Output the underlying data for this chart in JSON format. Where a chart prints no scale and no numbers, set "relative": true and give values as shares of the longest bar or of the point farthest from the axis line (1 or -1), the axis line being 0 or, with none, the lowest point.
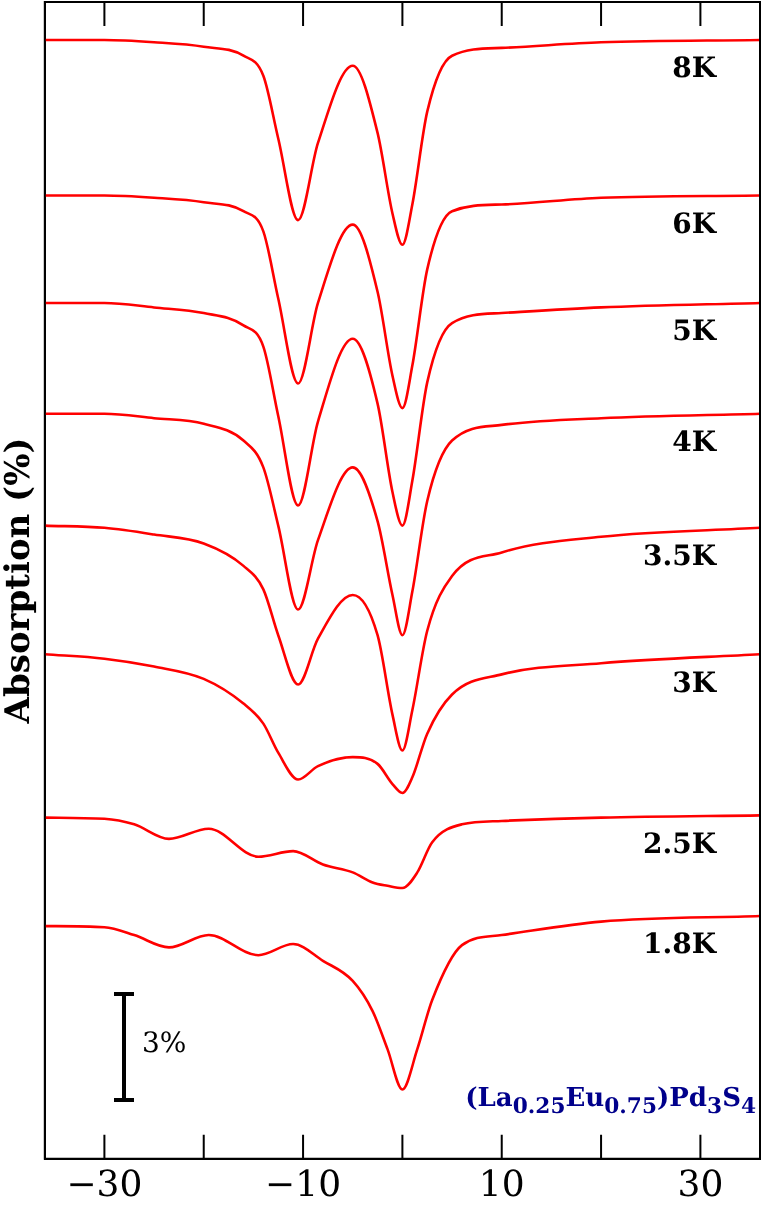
{
  "chart_data": {
    "type": "line",
    "relative": true,
    "ylabel": "Absorption (%)",
    "xlim": [
      -36,
      36
    ],
    "xticks": [
      -30,
      {
        "value": -20,
        "label": null
      },
      -10,
      {
        "value": 0,
        "label": null
      },
      10,
      {
        "value": 20,
        "label": null
      },
      30
    ],
    "tick_labels": "x",
    "grid": false,
    "legend": false,
    "marker": "none",
    "line_style": "solid",
    "annotations": [
      "3%",
      "(La$_{0.25}$Eu$_{0.75}$)Pd$_{3}$S$_{4}$"
    ],
    "series": [
      {
        "name": "8K",
        "color": "#ff0000",
        "x": [
          -36,
          -30,
          -25,
          -20,
          -16,
          -14,
          -12.5,
          -10.5,
          -8.5,
          -5,
          -2.5,
          -1,
          0,
          1,
          2.5,
          5,
          10,
          20,
          36
        ],
        "values": [
          1.0,
          1.0,
          0.998,
          0.994,
          0.986,
          0.968,
          0.912,
          0.839,
          0.908,
          0.977,
          0.917,
          0.845,
          0.817,
          0.853,
          0.936,
          0.986,
          0.993,
          0.998,
          1.0
        ]
      },
      {
        "name": "6K",
        "color": "#ff0000",
        "x": [
          -36,
          -30,
          -25,
          -20,
          -16,
          -14,
          -12.5,
          -10.5,
          -8.5,
          -5,
          -2.5,
          -1,
          0,
          1,
          2.5,
          5,
          10,
          20,
          36
        ],
        "values": [
          0.861,
          0.861,
          0.859,
          0.855,
          0.847,
          0.829,
          0.769,
          0.693,
          0.765,
          0.835,
          0.775,
          0.7,
          0.671,
          0.709,
          0.795,
          0.847,
          0.853,
          0.859,
          0.861
        ]
      },
      {
        "name": "5K",
        "color": "#ff0000",
        "x": [
          -36,
          -30,
          -25,
          -20,
          -16,
          -14,
          -12.5,
          -10.5,
          -8.5,
          -5,
          -2.5,
          -1,
          0,
          1,
          2.5,
          5,
          10,
          20,
          36
        ],
        "values": [
          0.765,
          0.765,
          0.761,
          0.756,
          0.745,
          0.726,
          0.664,
          0.584,
          0.659,
          0.733,
          0.675,
          0.596,
          0.566,
          0.606,
          0.694,
          0.747,
          0.756,
          0.761,
          0.765
        ]
      },
      {
        "name": "4K",
        "color": "#ff0000",
        "x": [
          -36,
          -30,
          -25,
          -20,
          -16,
          -14,
          -12.5,
          -10.5,
          -8.5,
          -5,
          -2.5,
          -1,
          0,
          1,
          2.5,
          5,
          10,
          20,
          36
        ],
        "values": [
          0.666,
          0.666,
          0.662,
          0.657,
          0.642,
          0.618,
          0.566,
          0.491,
          0.553,
          0.618,
          0.57,
          0.504,
          0.468,
          0.507,
          0.588,
          0.642,
          0.656,
          0.662,
          0.666
        ]
      },
      {
        "name": "3.5K",
        "color": "#ff0000",
        "x": [
          -36,
          -30,
          -25,
          -20,
          -16,
          -14,
          -12.5,
          -10.5,
          -8.5,
          -5,
          -2.5,
          -1,
          0,
          1,
          2.5,
          5,
          10,
          20,
          36
        ],
        "values": [
          0.566,
          0.564,
          0.558,
          0.55,
          0.53,
          0.509,
          0.468,
          0.424,
          0.465,
          0.504,
          0.468,
          0.397,
          0.365,
          0.401,
          0.472,
          0.521,
          0.542,
          0.556,
          0.564
        ]
      },
      {
        "name": "3K",
        "color": "#ff0000",
        "x": [
          -36,
          -30,
          -25,
          -20,
          -16,
          -14,
          -12.5,
          -10.5,
          -8.5,
          -5,
          -2.5,
          -1,
          0,
          1,
          2.5,
          5,
          10,
          20,
          36
        ],
        "values": [
          0.451,
          0.447,
          0.44,
          0.429,
          0.407,
          0.389,
          0.363,
          0.339,
          0.351,
          0.359,
          0.353,
          0.335,
          0.327,
          0.341,
          0.38,
          0.415,
          0.433,
          0.443,
          0.451
        ]
      },
      {
        "name": "2.5K",
        "color": "#ff0000",
        "x": [
          -36,
          -30,
          -27,
          -23.5,
          -19.5,
          -14.5,
          -11,
          -8,
          -5,
          -3,
          -1.5,
          0,
          1.5,
          3,
          6,
          10,
          20,
          36
        ],
        "values": [
          0.305,
          0.304,
          0.299,
          0.286,
          0.295,
          0.27,
          0.275,
          0.263,
          0.256,
          0.247,
          0.244,
          0.242,
          0.256,
          0.283,
          0.299,
          0.302,
          0.305,
          0.307
        ]
      },
      {
        "name": "1.8K",
        "color": "#ff0000",
        "x": [
          -36,
          -30,
          -27,
          -23.5,
          -19.5,
          -14.5,
          -11,
          -8,
          -5,
          -3,
          -1.5,
          0,
          1.5,
          3,
          6,
          10,
          20,
          36
        ],
        "values": [
          0.208,
          0.207,
          0.2,
          0.189,
          0.2,
          0.182,
          0.192,
          0.177,
          0.159,
          0.132,
          0.098,
          0.062,
          0.098,
          0.142,
          0.191,
          0.2,
          0.212,
          0.217
        ]
      }
    ]
  }
}
